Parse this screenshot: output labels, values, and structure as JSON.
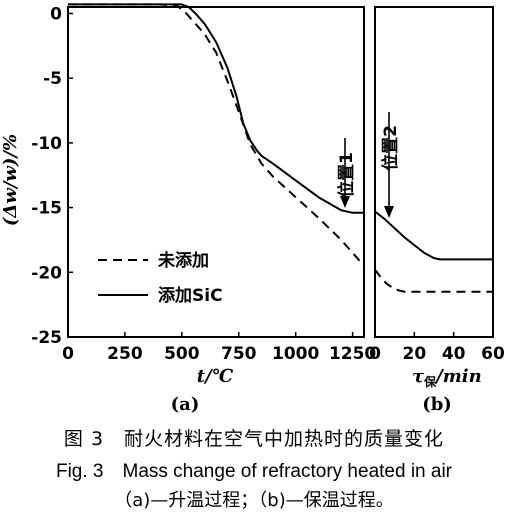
{
  "chart_data": [
    {
      "type": "line",
      "panel_label": "(a)",
      "xlabel": "t/℃",
      "ylabel": "(Δw/w)/%",
      "xlim": [
        0,
        1300
      ],
      "ylim": [
        -25,
        0.5
      ],
      "xticks": [
        0,
        250,
        500,
        750,
        1000,
        1250
      ],
      "yticks": [
        0,
        -5,
        -10,
        -15,
        -20,
        -25
      ],
      "legend_position": "bottom-left",
      "series": [
        {
          "name": "未添加",
          "style": "dashed",
          "x": [
            0,
            100,
            200,
            300,
            400,
            480,
            520,
            560,
            600,
            650,
            700,
            750,
            800,
            850,
            900,
            1000,
            1100,
            1200,
            1300
          ],
          "y": [
            0.7,
            0.7,
            0.7,
            0.7,
            0.7,
            0.6,
            0,
            -0.8,
            -1.6,
            -3.0,
            -5.2,
            -7.6,
            -10.1,
            -11.6,
            -12.6,
            -14.2,
            -15.8,
            -17.5,
            -19.5
          ]
        },
        {
          "name": "添加SiC",
          "style": "solid",
          "x": [
            0,
            100,
            200,
            300,
            400,
            500,
            530,
            560,
            600,
            650,
            700,
            740,
            770,
            800,
            830,
            850,
            900,
            1000,
            1100,
            1200,
            1250,
            1300
          ],
          "y": [
            0.7,
            0.7,
            0.7,
            0.7,
            0.7,
            0.7,
            0.5,
            0,
            -0.8,
            -2.2,
            -4.2,
            -6.4,
            -8.5,
            -9.8,
            -10.6,
            -11.0,
            -11.6,
            -12.9,
            -14.2,
            -15.2,
            -15.4,
            -15.4
          ]
        }
      ],
      "annotations": [
        {
          "text": "位置1",
          "x": 1230,
          "y": -15.4
        }
      ]
    },
    {
      "type": "line",
      "panel_label": "(b)",
      "xlabel": "τ保/min",
      "xlabel_main": "τ",
      "xlabel_sub": "保",
      "xlabel_unit": "/min",
      "xlim": [
        0,
        60
      ],
      "ylim": [
        -25,
        0.5
      ],
      "xticks": [
        0,
        20,
        40,
        60
      ],
      "series": [
        {
          "name": "未添加",
          "style": "dashed",
          "x": [
            0,
            3,
            6,
            9,
            12,
            15,
            20,
            30,
            40,
            50,
            60
          ],
          "y": [
            -19.8,
            -20.4,
            -20.9,
            -21.2,
            -21.4,
            -21.5,
            -21.5,
            -21.5,
            -21.5,
            -21.5,
            -21.5
          ]
        },
        {
          "name": "添加SiC",
          "style": "solid",
          "x": [
            0,
            5,
            10,
            15,
            20,
            25,
            30,
            33,
            40,
            50,
            60
          ],
          "y": [
            -15.3,
            -15.9,
            -16.6,
            -17.3,
            -17.9,
            -18.5,
            -18.9,
            -19.0,
            -19.0,
            -19.0,
            -19.0
          ]
        }
      ],
      "annotations": [
        {
          "text": "位置2",
          "x": 3.5,
          "y": -15.6
        }
      ]
    }
  ],
  "caption": {
    "zh": "图 3　耐火材料在空气中加热时的质量变化",
    "en": "Fig. 3　Mass change of refractory heated in air",
    "sub": "（a)—升温过程；（b)—保温过程。"
  }
}
